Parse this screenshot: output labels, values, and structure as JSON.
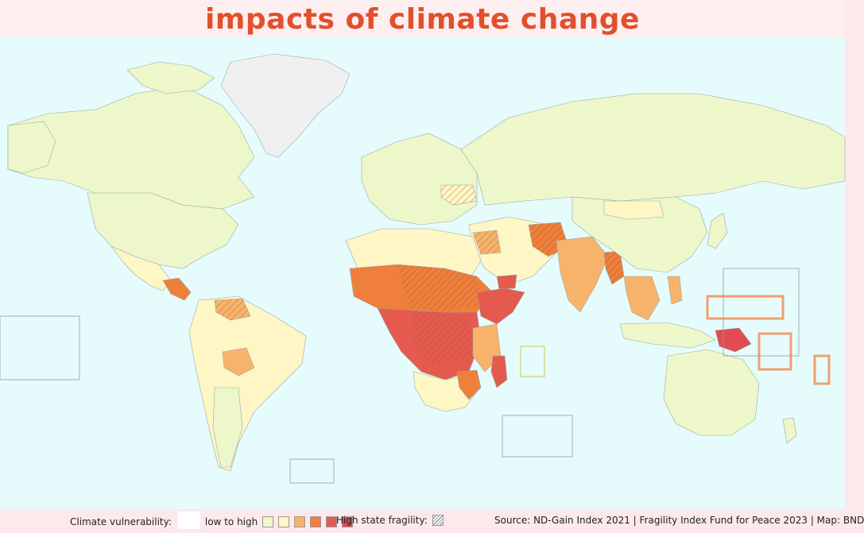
{
  "title": "impacts of climate change",
  "legend": {
    "vulnerability_label": "Climate vulnerability:",
    "scale_label": "low to high",
    "scale_colors": [
      "#f3f6c9",
      "#fff7c6",
      "#f8b36a",
      "#ef7f3b",
      "#e55a4e",
      "#e04c52"
    ],
    "fragility_label": "High state fragility:",
    "source_text": "Source: ND-Gain Index 2021 | Fragility Index Fund for Peace 2023 | Map: BND"
  },
  "colors": {
    "ocean": "#e6fbfb",
    "land_low": "#eef7c9",
    "land_lowmid": "#fff6c5",
    "land_mid": "#f8b36a",
    "land_high": "#ef7f3b",
    "land_vhigh": "#e55a4e",
    "nodata": "#f1f0f0"
  }
}
